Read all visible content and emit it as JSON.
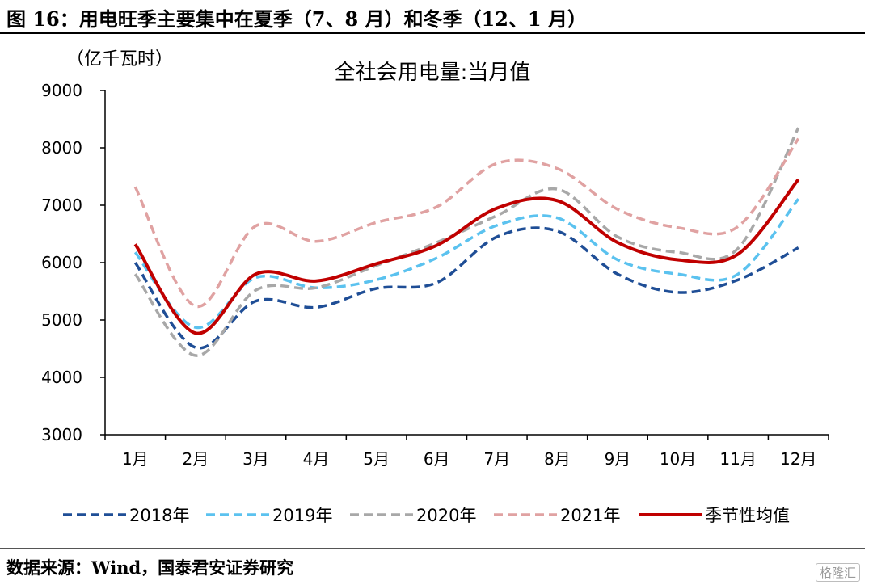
{
  "header": {
    "title": "图 16：用电旺季主要集中在夏季（7、8 月）和冬季（12、1 月）"
  },
  "footer": {
    "source": "数据来源：Wind，国泰君安证券研究",
    "watermark": "格隆汇"
  },
  "chart_data": {
    "type": "line",
    "title": "全社会用电量:当月值",
    "ylabel": "（亿千瓦时）",
    "xlabel": "",
    "ylim": [
      3000,
      9000
    ],
    "yticks": [
      3000,
      4000,
      5000,
      6000,
      7000,
      8000,
      9000
    ],
    "categories": [
      "1月",
      "2月",
      "3月",
      "4月",
      "5月",
      "6月",
      "7月",
      "8月",
      "9月",
      "10月",
      "11月",
      "12月"
    ],
    "grid": false,
    "legend_position": "bottom",
    "series": [
      {
        "name": "2018年",
        "color": "#1f4e96",
        "dash": true,
        "width": 3.5,
        "values": [
          6000,
          4520,
          5330,
          5220,
          5550,
          5650,
          6450,
          6550,
          5800,
          5480,
          5700,
          6260
        ]
      },
      {
        "name": "2019年",
        "color": "#5bc2ef",
        "dash": true,
        "width": 3.5,
        "values": [
          6180,
          4870,
          5740,
          5560,
          5700,
          6080,
          6650,
          6780,
          6050,
          5800,
          5800,
          7110
        ]
      },
      {
        "name": "2020年",
        "color": "#a8a8a8",
        "dash": true,
        "width": 3.5,
        "values": [
          5800,
          4380,
          5520,
          5560,
          5950,
          6350,
          6820,
          7280,
          6450,
          6180,
          6250,
          8350
        ]
      },
      {
        "name": "2021年",
        "color": "#e0a2a2",
        "dash": true,
        "width": 3.5,
        "values": [
          7320,
          5240,
          6640,
          6370,
          6700,
          6970,
          7730,
          7640,
          6930,
          6610,
          6630,
          8160
        ]
      },
      {
        "name": "季节性均值",
        "color": "#c00000",
        "dash": false,
        "width": 4,
        "values": [
          6320,
          4770,
          5800,
          5680,
          5980,
          6300,
          6950,
          7080,
          6350,
          6050,
          6150,
          7450
        ]
      }
    ]
  }
}
